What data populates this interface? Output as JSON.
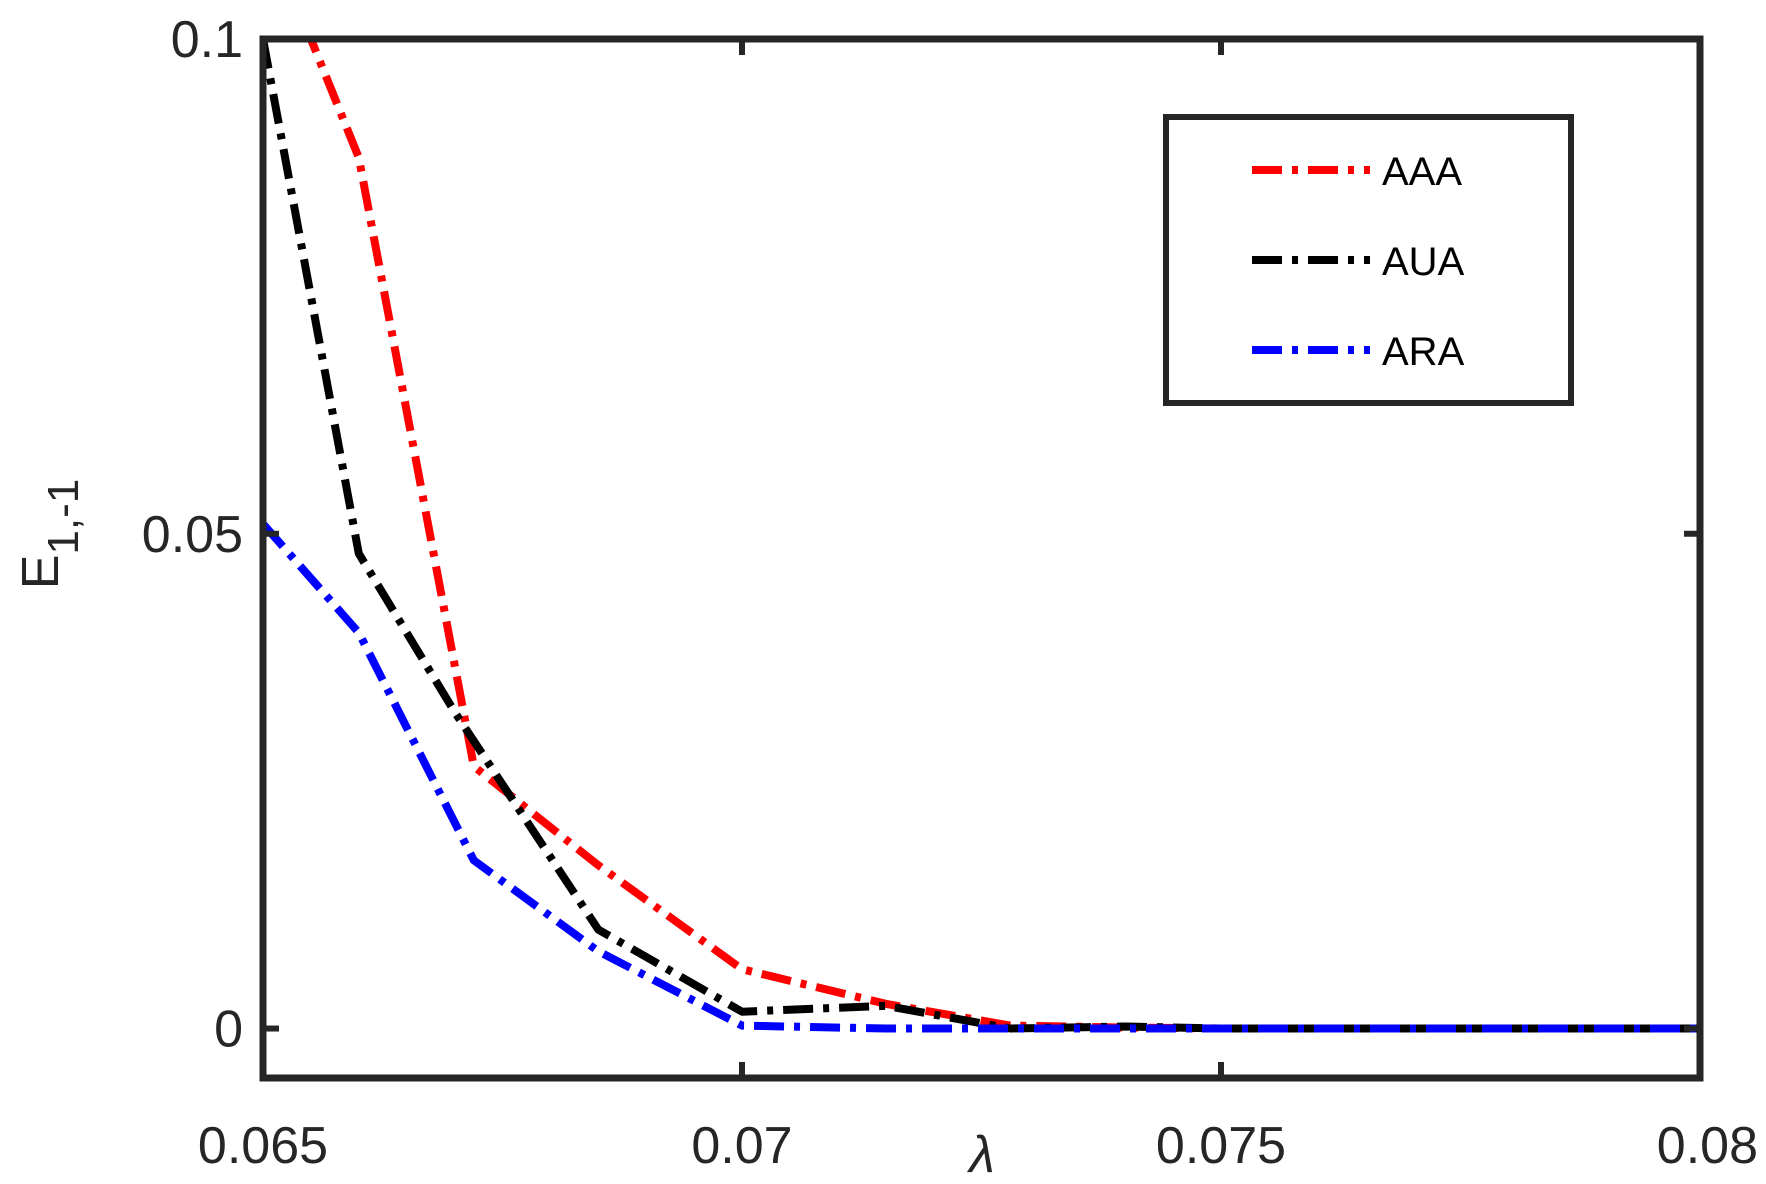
{
  "chart_data": {
    "type": "line",
    "xlabel": "λ",
    "ylabel": {
      "main": "E",
      "sub": "1,-1"
    },
    "xlim": [
      0.065,
      0.08
    ],
    "ylim": [
      -0.005,
      0.1
    ],
    "xticks": [
      {
        "value": 0.065,
        "label": "0.065"
      },
      {
        "value": 0.07,
        "label": "0.07"
      },
      {
        "value": 0.075,
        "label": "0.075"
      },
      {
        "value": 0.08,
        "label": "0.08"
      }
    ],
    "yticks": [
      {
        "value": 0,
        "label": "0"
      },
      {
        "value": 0.05,
        "label": "0.05"
      },
      {
        "value": 0.1,
        "label": "0.1"
      }
    ],
    "grid": false,
    "legend_position": "top-right",
    "series": [
      {
        "name": "AAA",
        "color": "#ff0000",
        "x": [
          0.065,
          0.066,
          0.0672,
          0.0685,
          0.07,
          0.0715,
          0.0728,
          0.074,
          0.075,
          0.08
        ],
        "y": [
          0.112,
          0.088,
          0.0265,
          0.0165,
          0.006,
          0.0025,
          0.0003,
          0.0001,
          0.0,
          0.0
        ]
      },
      {
        "name": "AUA",
        "color": "#000000",
        "x": [
          0.065,
          0.066,
          0.067,
          0.0685,
          0.07,
          0.0715,
          0.0728,
          0.074,
          0.075,
          0.08
        ],
        "y": [
          0.1,
          0.048,
          0.032,
          0.01,
          0.0017,
          0.0023,
          0.0,
          0.0002,
          0.0,
          0.0
        ]
      },
      {
        "name": "ARA",
        "color": "#0000ff",
        "x": [
          0.065,
          0.066,
          0.0672,
          0.0685,
          0.07,
          0.0715,
          0.0728,
          0.074,
          0.075,
          0.08
        ],
        "y": [
          0.051,
          0.04,
          0.017,
          0.0078,
          0.0003,
          0.0,
          0.0,
          0.0,
          0.0,
          0.0
        ]
      }
    ]
  }
}
